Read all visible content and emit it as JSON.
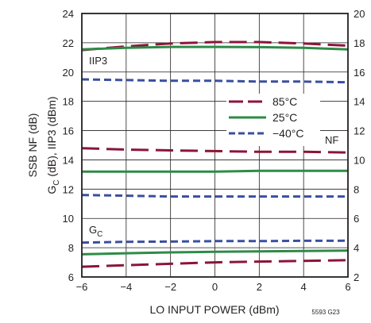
{
  "chart_data": {
    "type": "line",
    "xlabel": "LO INPUT POWER (dBm)",
    "ylabel_left_line1": "SSB NF (dB)",
    "ylabel_left_line2_main": "G",
    "ylabel_left_line2_sub": "C",
    "ylabel_left_line2_rest": " (dB), IIP3 (dBm)",
    "figure_id": "5593 G23",
    "x_ticks": [
      "−6",
      "−4",
      "−2",
      "0",
      "2",
      "4",
      "6"
    ],
    "y_left_ticks": [
      "6",
      "8",
      "10",
      "12",
      "14",
      "16",
      "18",
      "20",
      "22",
      "24"
    ],
    "y_right_ticks": [
      "2",
      "4",
      "6",
      "8",
      "10",
      "12",
      "14",
      "16",
      "18",
      "20"
    ],
    "xlim": [
      -6,
      6
    ],
    "ylim_left": [
      6,
      24
    ],
    "ylim_right": [
      2,
      20
    ],
    "grid": true,
    "legend": {
      "placement": "center-right",
      "entries": [
        {
          "label": "85°C",
          "color": "#8b1538",
          "style": "long-dash"
        },
        {
          "label": "25°C",
          "color": "#2e8b47",
          "style": "solid"
        },
        {
          "label": "−40°C",
          "color": "#3a4fa0",
          "style": "short-dash"
        }
      ]
    },
    "annotations": {
      "iip3": "IIP3",
      "nf": "NF",
      "gc_main": "G",
      "gc_sub": "C"
    },
    "x": [
      -6,
      -4,
      -2,
      0,
      2,
      4,
      6
    ],
    "series": [
      {
        "group": "IIP3",
        "temp": "85°C",
        "color": "#8b1538",
        "style": "long-dash",
        "values": [
          21.5,
          21.75,
          21.95,
          22.05,
          22.05,
          21.95,
          21.8
        ]
      },
      {
        "group": "IIP3",
        "temp": "25°C",
        "color": "#2e8b47",
        "style": "solid",
        "values": [
          21.55,
          21.65,
          21.72,
          21.72,
          21.7,
          21.65,
          21.55
        ]
      },
      {
        "group": "IIP3",
        "temp": "−40°C",
        "color": "#3a4fa0",
        "style": "short-dash",
        "values": [
          19.5,
          19.45,
          19.4,
          19.4,
          19.35,
          19.35,
          19.3
        ]
      },
      {
        "group": "NF",
        "temp": "85°C",
        "color": "#8b1538",
        "style": "long-dash",
        "values": [
          14.8,
          14.7,
          14.65,
          14.6,
          14.55,
          14.55,
          14.5
        ]
      },
      {
        "group": "NF",
        "temp": "25°C",
        "color": "#2e8b47",
        "style": "solid",
        "values": [
          13.2,
          13.2,
          13.2,
          13.2,
          13.25,
          13.25,
          13.25
        ]
      },
      {
        "group": "NF",
        "temp": "−40°C",
        "color": "#3a4fa0",
        "style": "short-dash",
        "values": [
          11.6,
          11.55,
          11.5,
          11.5,
          11.5,
          11.5,
          11.5
        ]
      },
      {
        "group": "GC",
        "temp": "85°C",
        "color": "#8b1538",
        "style": "long-dash",
        "values": [
          6.7,
          6.8,
          6.9,
          7.0,
          7.05,
          7.1,
          7.15
        ]
      },
      {
        "group": "GC",
        "temp": "25°C",
        "color": "#2e8b47",
        "style": "solid",
        "values": [
          7.55,
          7.62,
          7.68,
          7.72,
          7.75,
          7.78,
          7.8
        ]
      },
      {
        "group": "GC",
        "temp": "−40°C",
        "color": "#3a4fa0",
        "style": "short-dash",
        "values": [
          8.35,
          8.4,
          8.42,
          8.45,
          8.45,
          8.47,
          8.48
        ]
      }
    ]
  }
}
